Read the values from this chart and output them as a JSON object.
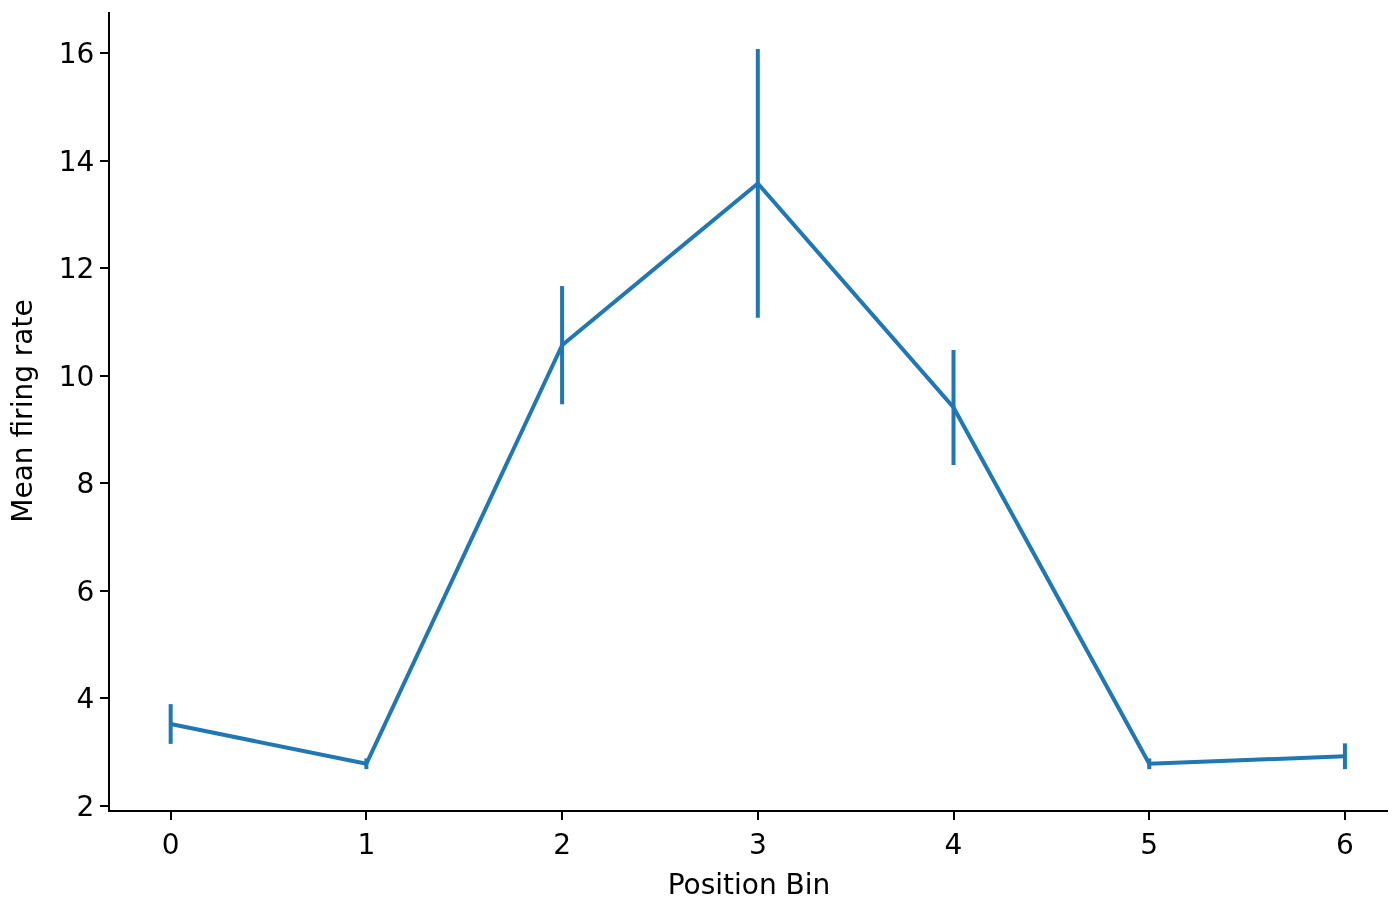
{
  "chart_data": {
    "type": "line",
    "xlabel": "Position Bin",
    "ylabel": "Mean firing rate",
    "x": [
      0,
      1,
      2,
      3,
      4,
      5,
      6
    ],
    "series": [
      {
        "color": "#1f77b4",
        "values": [
          3.52,
          2.78,
          10.57,
          13.58,
          9.41,
          2.78,
          2.92
        ],
        "errors": [
          0.37,
          0.1,
          1.1,
          2.5,
          1.07,
          0.1,
          0.24
        ]
      }
    ],
    "xlim": [
      -0.31,
      6.22
    ],
    "ylim": [
      1.92,
      16.77
    ],
    "xticks": [
      0,
      1,
      2,
      3,
      4,
      5,
      6
    ],
    "yticks": [
      2,
      4,
      6,
      8,
      10,
      12,
      14,
      16
    ],
    "legend": false,
    "marker": "none",
    "line_style": "solid"
  }
}
